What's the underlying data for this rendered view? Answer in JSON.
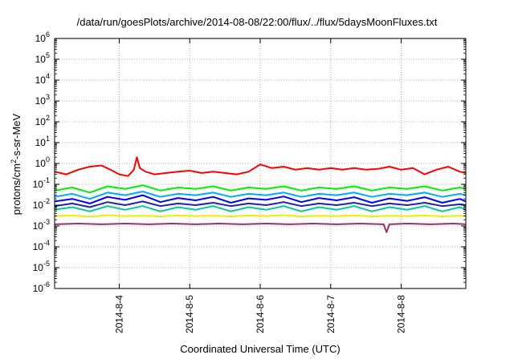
{
  "chart_data": {
    "type": "line",
    "title": "/data/run/goesPlots/archive/2014-08-08/22:00/flux/../flux/5daysMoonFluxes.txt",
    "xlabel": "Coordinated Universal Time (UTC)",
    "ylabel": {
      "prefix": "protons/cm",
      "superscript": "2",
      "suffix": "-s-sr-MeV"
    },
    "y_scale": "log",
    "ylim": [
      1e-06,
      1000000.0
    ],
    "y_ticks": [
      {
        "value": 1e-06,
        "base": "10",
        "exp": "-6"
      },
      {
        "value": 1e-05,
        "base": "10",
        "exp": "-5"
      },
      {
        "value": 0.0001,
        "base": "10",
        "exp": "-4"
      },
      {
        "value": 0.001,
        "base": "10",
        "exp": "-3"
      },
      {
        "value": 0.01,
        "base": "10",
        "exp": "-2"
      },
      {
        "value": 0.1,
        "base": "10",
        "exp": "-1"
      },
      {
        "value": 1.0,
        "base": "10",
        "exp": "0"
      },
      {
        "value": 10.0,
        "base": "10",
        "exp": "1"
      },
      {
        "value": 100.0,
        "base": "10",
        "exp": "2"
      },
      {
        "value": 1000.0,
        "base": "10",
        "exp": "3"
      },
      {
        "value": 10000.0,
        "base": "10",
        "exp": "4"
      },
      {
        "value": 100000.0,
        "base": "10",
        "exp": "5"
      },
      {
        "value": 1000000.0,
        "base": "10",
        "exp": "6"
      }
    ],
    "xlim": [
      "2014-08-03 02:00",
      "2014-08-08 22:00"
    ],
    "x_ticks": [
      {
        "value": "2014-08-04 00:00",
        "label": "2014-8-4"
      },
      {
        "value": "2014-08-05 00:00",
        "label": "2014-8-5"
      },
      {
        "value": "2014-08-06 00:00",
        "label": "2014-8-6"
      },
      {
        "value": "2014-08-07 00:00",
        "label": "2014-8-7"
      },
      {
        "value": "2014-08-08 00:00",
        "label": "2014-8-8"
      }
    ],
    "grid": true,
    "legend": "none",
    "series": [
      {
        "color": "#ff0000",
        "x": [
          "2014-08-03 02:00",
          "2014-08-03 06:00",
          "2014-08-03 10:00",
          "2014-08-03 14:00",
          "2014-08-03 18:00",
          "2014-08-03 21:00",
          "2014-08-04 00:00",
          "2014-08-04 03:00",
          "2014-08-04 05:00",
          "2014-08-04 06:00",
          "2014-08-04 07:00",
          "2014-08-04 09:00",
          "2014-08-04 12:00",
          "2014-08-04 16:00",
          "2014-08-04 20:00",
          "2014-08-05 00:00",
          "2014-08-05 04:00",
          "2014-08-05 08:00",
          "2014-08-05 12:00",
          "2014-08-05 16:00",
          "2014-08-05 20:00",
          "2014-08-06 00:00",
          "2014-08-06 04:00",
          "2014-08-06 08:00",
          "2014-08-06 12:00",
          "2014-08-06 16:00",
          "2014-08-06 20:00",
          "2014-08-07 00:00",
          "2014-08-07 04:00",
          "2014-08-07 08:00",
          "2014-08-07 12:00",
          "2014-08-07 16:00",
          "2014-08-07 20:00",
          "2014-08-08 00:00",
          "2014-08-08 04:00",
          "2014-08-08 08:00",
          "2014-08-08 12:00",
          "2014-08-08 16:00",
          "2014-08-08 20:00",
          "2014-08-08 22:00"
        ],
        "y": [
          0.4,
          0.3,
          0.5,
          0.7,
          0.8,
          0.5,
          0.3,
          0.25,
          0.5,
          2.0,
          0.6,
          0.4,
          0.3,
          0.35,
          0.4,
          0.45,
          0.35,
          0.4,
          0.35,
          0.3,
          0.4,
          0.9,
          0.6,
          0.7,
          0.5,
          0.6,
          0.5,
          0.6,
          0.5,
          0.6,
          0.5,
          0.55,
          0.7,
          0.5,
          0.6,
          0.3,
          0.5,
          0.7,
          0.4,
          0.35
        ]
      },
      {
        "color": "#00ee00",
        "x": [
          "2014-08-03 02:00",
          "2014-08-03 08:00",
          "2014-08-03 14:00",
          "2014-08-03 20:00",
          "2014-08-04 02:00",
          "2014-08-04 08:00",
          "2014-08-04 14:00",
          "2014-08-04 20:00",
          "2014-08-05 02:00",
          "2014-08-05 08:00",
          "2014-08-05 14:00",
          "2014-08-05 20:00",
          "2014-08-06 02:00",
          "2014-08-06 08:00",
          "2014-08-06 14:00",
          "2014-08-06 20:00",
          "2014-08-07 02:00",
          "2014-08-07 08:00",
          "2014-08-07 14:00",
          "2014-08-07 20:00",
          "2014-08-08 02:00",
          "2014-08-08 08:00",
          "2014-08-08 14:00",
          "2014-08-08 20:00",
          "2014-08-08 22:00"
        ],
        "y": [
          0.05,
          0.07,
          0.04,
          0.08,
          0.06,
          0.09,
          0.05,
          0.07,
          0.06,
          0.08,
          0.05,
          0.07,
          0.06,
          0.08,
          0.05,
          0.07,
          0.06,
          0.08,
          0.05,
          0.07,
          0.06,
          0.08,
          0.05,
          0.07,
          0.06
        ]
      },
      {
        "color": "#00aaff",
        "x": [
          "2014-08-03 02:00",
          "2014-08-03 08:00",
          "2014-08-03 14:00",
          "2014-08-03 20:00",
          "2014-08-04 02:00",
          "2014-08-04 08:00",
          "2014-08-04 14:00",
          "2014-08-04 20:00",
          "2014-08-05 02:00",
          "2014-08-05 08:00",
          "2014-08-05 14:00",
          "2014-08-05 20:00",
          "2014-08-06 02:00",
          "2014-08-06 08:00",
          "2014-08-06 14:00",
          "2014-08-06 20:00",
          "2014-08-07 02:00",
          "2014-08-07 08:00",
          "2014-08-07 14:00",
          "2014-08-07 20:00",
          "2014-08-08 02:00",
          "2014-08-08 08:00",
          "2014-08-08 14:00",
          "2014-08-08 20:00",
          "2014-08-08 22:00"
        ],
        "y": [
          0.025,
          0.035,
          0.02,
          0.04,
          0.03,
          0.045,
          0.025,
          0.035,
          0.03,
          0.04,
          0.025,
          0.035,
          0.03,
          0.04,
          0.025,
          0.035,
          0.03,
          0.04,
          0.025,
          0.035,
          0.03,
          0.04,
          0.025,
          0.035,
          0.03
        ]
      },
      {
        "color": "#0000ff",
        "x": [
          "2014-08-03 02:00",
          "2014-08-03 08:00",
          "2014-08-03 14:00",
          "2014-08-03 20:00",
          "2014-08-04 02:00",
          "2014-08-04 08:00",
          "2014-08-04 14:00",
          "2014-08-04 20:00",
          "2014-08-05 02:00",
          "2014-08-05 08:00",
          "2014-08-05 14:00",
          "2014-08-05 20:00",
          "2014-08-06 02:00",
          "2014-08-06 08:00",
          "2014-08-06 14:00",
          "2014-08-06 20:00",
          "2014-08-07 02:00",
          "2014-08-07 08:00",
          "2014-08-07 14:00",
          "2014-08-07 20:00",
          "2014-08-08 02:00",
          "2014-08-08 08:00",
          "2014-08-08 14:00",
          "2014-08-08 20:00",
          "2014-08-08 22:00"
        ],
        "y": [
          0.015,
          0.02,
          0.012,
          0.025,
          0.018,
          0.03,
          0.014,
          0.022,
          0.017,
          0.025,
          0.013,
          0.021,
          0.018,
          0.026,
          0.014,
          0.022,
          0.017,
          0.024,
          0.013,
          0.021,
          0.016,
          0.024,
          0.013,
          0.02,
          0.015
        ]
      },
      {
        "color": "#2222aa",
        "x": [
          "2014-08-03 02:00",
          "2014-08-03 08:00",
          "2014-08-03 14:00",
          "2014-08-03 20:00",
          "2014-08-04 02:00",
          "2014-08-04 08:00",
          "2014-08-04 14:00",
          "2014-08-04 20:00",
          "2014-08-05 02:00",
          "2014-08-05 08:00",
          "2014-08-05 14:00",
          "2014-08-05 20:00",
          "2014-08-06 02:00",
          "2014-08-06 08:00",
          "2014-08-06 14:00",
          "2014-08-06 20:00",
          "2014-08-07 02:00",
          "2014-08-07 08:00",
          "2014-08-07 14:00",
          "2014-08-07 20:00",
          "2014-08-08 02:00",
          "2014-08-08 08:00",
          "2014-08-08 14:00",
          "2014-08-08 20:00",
          "2014-08-08 22:00"
        ],
        "y": [
          0.009,
          0.012,
          0.008,
          0.014,
          0.01,
          0.015,
          0.009,
          0.012,
          0.01,
          0.013,
          0.009,
          0.012,
          0.01,
          0.014,
          0.009,
          0.012,
          0.01,
          0.013,
          0.009,
          0.012,
          0.01,
          0.013,
          0.009,
          0.011,
          0.01
        ]
      },
      {
        "color": "#00cc99",
        "x": [
          "2014-08-03 02:00",
          "2014-08-03 08:00",
          "2014-08-03 14:00",
          "2014-08-03 20:00",
          "2014-08-04 02:00",
          "2014-08-04 08:00",
          "2014-08-04 14:00",
          "2014-08-04 20:00",
          "2014-08-05 02:00",
          "2014-08-05 08:00",
          "2014-08-05 14:00",
          "2014-08-05 20:00",
          "2014-08-06 02:00",
          "2014-08-06 08:00",
          "2014-08-06 14:00",
          "2014-08-06 20:00",
          "2014-08-07 02:00",
          "2014-08-07 08:00",
          "2014-08-07 14:00",
          "2014-08-07 20:00",
          "2014-08-08 02:00",
          "2014-08-08 08:00",
          "2014-08-08 14:00",
          "2014-08-08 20:00",
          "2014-08-08 22:00"
        ],
        "y": [
          0.006,
          0.008,
          0.005,
          0.009,
          0.006,
          0.009,
          0.005,
          0.008,
          0.006,
          0.009,
          0.005,
          0.008,
          0.006,
          0.009,
          0.005,
          0.008,
          0.006,
          0.009,
          0.005,
          0.008,
          0.006,
          0.009,
          0.005,
          0.008,
          0.006
        ]
      },
      {
        "color": "#eeee00",
        "x": [
          "2014-08-03 02:00",
          "2014-08-03 08:00",
          "2014-08-03 14:00",
          "2014-08-03 20:00",
          "2014-08-04 02:00",
          "2014-08-04 08:00",
          "2014-08-04 14:00",
          "2014-08-04 20:00",
          "2014-08-05 02:00",
          "2014-08-05 08:00",
          "2014-08-05 14:00",
          "2014-08-05 20:00",
          "2014-08-06 02:00",
          "2014-08-06 08:00",
          "2014-08-06 14:00",
          "2014-08-06 20:00",
          "2014-08-07 02:00",
          "2014-08-07 08:00",
          "2014-08-07 14:00",
          "2014-08-07 20:00",
          "2014-08-08 02:00",
          "2014-08-08 08:00",
          "2014-08-08 14:00",
          "2014-08-08 20:00",
          "2014-08-08 22:00"
        ],
        "y": [
          0.003,
          0.0032,
          0.0028,
          0.0033,
          0.003,
          0.0031,
          0.0029,
          0.0032,
          0.003,
          0.0031,
          0.0029,
          0.0032,
          0.003,
          0.0033,
          0.0029,
          0.0031,
          0.003,
          0.0032,
          0.0029,
          0.0031,
          0.003,
          0.0032,
          0.0029,
          0.0031,
          0.003
        ]
      },
      {
        "color": "#993366",
        "x": [
          "2014-08-03 02:00",
          "2014-08-03 10:00",
          "2014-08-03 18:00",
          "2014-08-04 02:00",
          "2014-08-04 10:00",
          "2014-08-04 18:00",
          "2014-08-05 02:00",
          "2014-08-05 10:00",
          "2014-08-05 18:00",
          "2014-08-06 02:00",
          "2014-08-06 10:00",
          "2014-08-06 18:00",
          "2014-08-07 02:00",
          "2014-08-07 10:00",
          "2014-08-07 18:00",
          "2014-08-07 19:00",
          "2014-08-07 20:00",
          "2014-08-08 02:00",
          "2014-08-08 10:00",
          "2014-08-08 18:00",
          "2014-08-08 22:00"
        ],
        "y": [
          0.0012,
          0.0013,
          0.0012,
          0.0013,
          0.0012,
          0.0013,
          0.0012,
          0.0013,
          0.0012,
          0.0013,
          0.0012,
          0.0013,
          0.0012,
          0.0013,
          0.0012,
          0.0005,
          0.0012,
          0.0013,
          0.0012,
          0.0013,
          0.0012
        ]
      }
    ]
  }
}
